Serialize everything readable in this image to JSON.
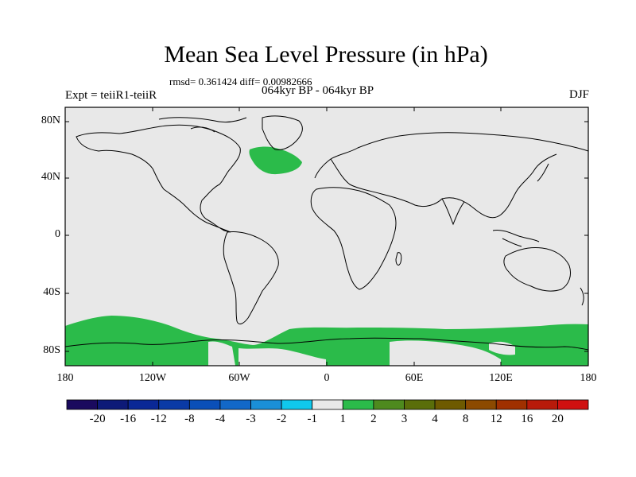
{
  "title": "Mean Sea Level Pressure (in hPa)",
  "stats": "rmsd= 0.361424 diff= 0.00982666",
  "period": "064kyr BP - 064kyr BP",
  "experiment": "Expt = teiiR1-teiiR",
  "season": "DJF",
  "map": {
    "lat_labels": [
      "80N",
      "40N",
      "0",
      "40S",
      "80S"
    ],
    "lat_values": [
      80,
      40,
      0,
      -40,
      -80
    ],
    "lon_labels": [
      "180",
      "120W",
      "60W",
      "0",
      "60E",
      "120E",
      "180"
    ],
    "lon_values": [
      -180,
      -120,
      -60,
      0,
      60,
      120,
      180
    ],
    "lat_range": [
      -90,
      90
    ],
    "lon_range": [
      -180,
      180
    ],
    "background_color": "#e8e8e8",
    "anomaly_color": "#2bbb4a",
    "anomaly_regions": [
      {
        "name": "north-atlantic-anomaly",
        "category": "1 to 2 hPa"
      },
      {
        "name": "southern-ocean-anomaly",
        "category": "1 to 2 hPa"
      }
    ]
  },
  "colorbar": {
    "labels": [
      "-20",
      "-16",
      "-12",
      "-8",
      "-4",
      "-3",
      "-2",
      "-1",
      "1",
      "2",
      "3",
      "4",
      "8",
      "12",
      "16",
      "20"
    ],
    "colors": [
      "#1a0a5e",
      "#0d1a78",
      "#0a2896",
      "#0a3aa6",
      "#0a4fb8",
      "#1268c8",
      "#1a8fd8",
      "#10c8ec",
      "#e8e8e8",
      "#2bbb4a",
      "#4e8a1e",
      "#5a6e0a",
      "#6e5a00",
      "#8c4a00",
      "#a03000",
      "#b81a0a",
      "#d01010"
    ]
  }
}
